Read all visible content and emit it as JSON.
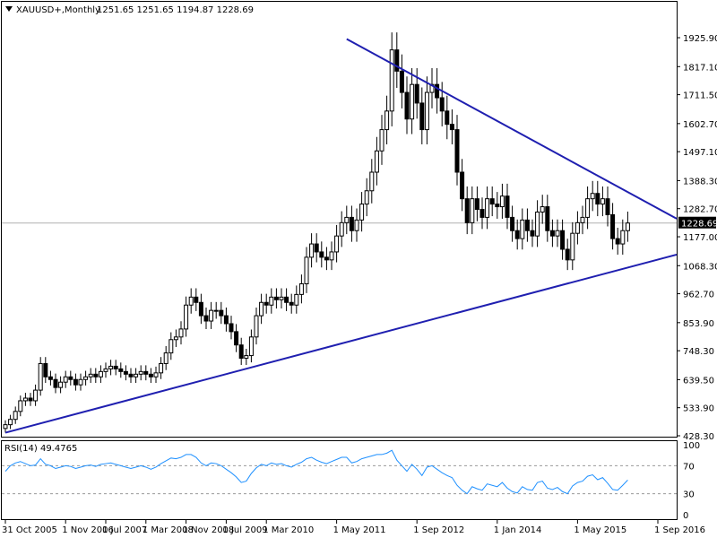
{
  "header": {
    "symbol": "XAUUSD+,Monthly",
    "ohlc": "1251.65 1251.65 1194.87 1228.69"
  },
  "colors": {
    "background": "#ffffff",
    "frame": "#000000",
    "candle": "#000000",
    "trendline": "#1f1fb0",
    "rsi_line": "#1e90ff",
    "rsi_levels": "#9a9a9a",
    "price_marker_bg": "#000000",
    "price_marker_text": "#ffffff",
    "current_price_line": "#b0b0b0"
  },
  "chart_data": [
    {
      "type": "candlestick",
      "symbol": "XAUUSD+",
      "timeframe": "Monthly",
      "ylim": [
        428.3,
        1980
      ],
      "price_ticks": [
        "1925.90",
        "1817.10",
        "1711.50",
        "1602.70",
        "1497.10",
        "1388.30",
        "1282.70",
        "1177.00",
        "1068.30",
        "962.70",
        "853.90",
        "748.30",
        "639.50",
        "533.90",
        "428.30"
      ],
      "x_ticks": [
        "31 Oct 2005",
        "1 Nov 2006",
        "1 Jul 2007",
        "1 Mar 2008",
        "1 Nov 2008",
        "1 Jul 2009",
        "1 Mar 2010",
        "1 May 2011",
        "1 Sep 2012",
        "1 Jan 2014",
        "1 May 2015",
        "1 Sep 2016"
      ],
      "current_price": "1228.69",
      "grid": false,
      "trendlines": [
        {
          "name": "resistance",
          "from": {
            "bar": 0,
            "price": 0
          },
          "points": [
            {
              "bar": 68,
              "price": 1921
            },
            {
              "bar": 131,
              "price": 1245
            }
          ]
        },
        {
          "name": "support",
          "points": [
            {
              "bar": 0,
              "price": 440
            },
            {
              "bar": 131,
              "price": 1110
            }
          ]
        }
      ],
      "close_series": [
        470,
        490,
        520,
        560,
        570,
        560,
        600,
        700,
        650,
        640,
        610,
        630,
        650,
        640,
        620,
        640,
        650,
        660,
        650,
        670,
        680,
        690,
        680,
        670,
        660,
        650,
        660,
        670,
        660,
        650,
        665,
        700,
        740,
        790,
        800,
        830,
        920,
        950,
        930,
        880,
        860,
        900,
        900,
        880,
        850,
        820,
        770,
        720,
        730,
        800,
        880,
        930,
        920,
        950,
        940,
        950,
        930,
        920,
        960,
        1000,
        1100,
        1150,
        1120,
        1100,
        1090,
        1120,
        1180,
        1230,
        1250,
        1200,
        1240,
        1300,
        1350,
        1420,
        1500,
        1580,
        1650,
        1880,
        1800,
        1720,
        1620,
        1750,
        1680,
        1580,
        1720,
        1750,
        1700,
        1650,
        1600,
        1580,
        1420,
        1320,
        1230,
        1320,
        1280,
        1250,
        1320,
        1300,
        1290,
        1330,
        1250,
        1200,
        1170,
        1240,
        1200,
        1180,
        1270,
        1290,
        1200,
        1180,
        1200,
        1130,
        1090,
        1190,
        1230,
        1250,
        1320,
        1340,
        1300,
        1320,
        1260,
        1170,
        1150,
        1200,
        1228.69
      ],
      "rsi": {
        "label": "RSI(14) 49.4765",
        "period": 14,
        "value": 49.4765,
        "levels": [
          70,
          30
        ],
        "ylim": [
          0,
          100
        ],
        "ticks": [
          "100",
          "70",
          "30",
          "0"
        ],
        "values": [
          62,
          70,
          74,
          76,
          73,
          70,
          71,
          80,
          72,
          70,
          66,
          68,
          70,
          69,
          66,
          68,
          70,
          71,
          69,
          72,
          73,
          74,
          72,
          70,
          68,
          66,
          68,
          70,
          68,
          65,
          68,
          73,
          77,
          81,
          80,
          82,
          86,
          86,
          82,
          74,
          70,
          74,
          73,
          70,
          65,
          60,
          54,
          46,
          48,
          59,
          67,
          72,
          70,
          74,
          72,
          73,
          70,
          68,
          72,
          75,
          80,
          82,
          78,
          75,
          73,
          76,
          79,
          82,
          82,
          74,
          76,
          80,
          82,
          84,
          86,
          86,
          88,
          92,
          78,
          70,
          62,
          72,
          65,
          56,
          68,
          70,
          65,
          60,
          56,
          53,
          42,
          35,
          30,
          40,
          37,
          35,
          44,
          42,
          40,
          46,
          38,
          33,
          31,
          40,
          36,
          35,
          46,
          48,
          38,
          36,
          39,
          33,
          30,
          41,
          46,
          48,
          55,
          57,
          50,
          53,
          45,
          36,
          35,
          42,
          49.48
        ]
      }
    }
  ]
}
